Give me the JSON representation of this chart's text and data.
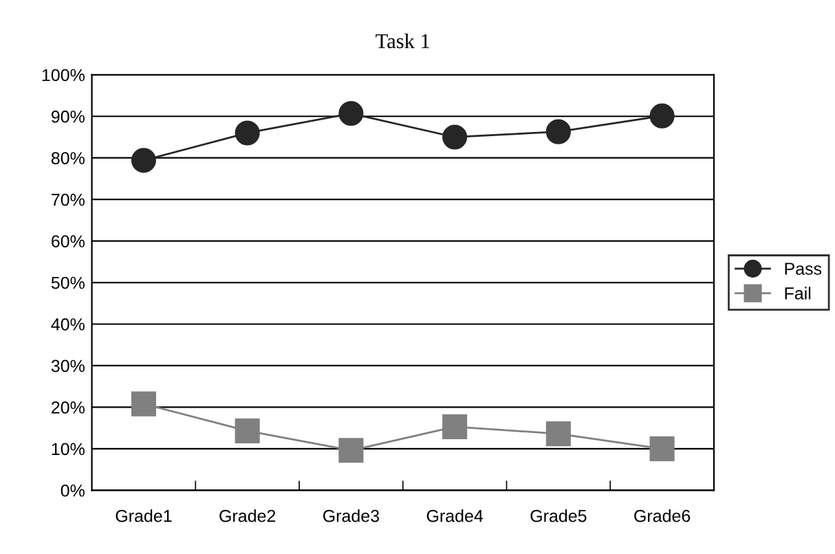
{
  "chart_data": {
    "type": "line",
    "title": "Task 1",
    "categories": [
      "Grade1",
      "Grade2",
      "Grade3",
      "Grade4",
      "Grade5",
      "Grade6"
    ],
    "series": [
      {
        "name": "Pass",
        "color": "#262626",
        "marker": "circle",
        "values": [
          79.4,
          86,
          90.7,
          85,
          86.3,
          90.1
        ]
      },
      {
        "name": "Fail",
        "color": "#808080",
        "marker": "square",
        "values": [
          20.8,
          14.3,
          9.6,
          15.3,
          13.6,
          10
        ]
      }
    ],
    "ylim": [
      0,
      100
    ],
    "yticks": [
      {
        "value": 0,
        "label": "0%"
      },
      {
        "value": 10,
        "label": "10%"
      },
      {
        "value": 20,
        "label": "20%"
      },
      {
        "value": 30,
        "label": "30%"
      },
      {
        "value": 40,
        "label": "40%"
      },
      {
        "value": 50,
        "label": "50%"
      },
      {
        "value": 60,
        "label": "60%"
      },
      {
        "value": 70,
        "label": "70%"
      },
      {
        "value": 80,
        "label": "80%"
      },
      {
        "value": 90,
        "label": "90%"
      },
      {
        "value": 100,
        "label": "100%"
      }
    ],
    "grid": "y",
    "legend": "right"
  }
}
